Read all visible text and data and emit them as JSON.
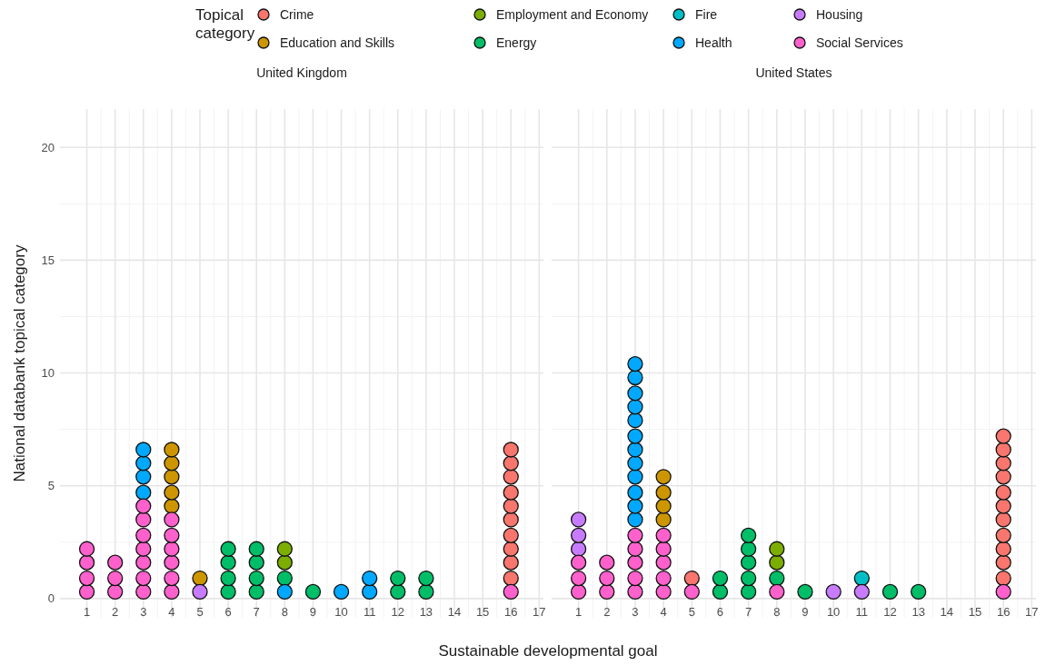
{
  "chart_data": [
    {
      "type": "scatter",
      "title": "United Kingdom",
      "xlabel": "Sustainable developmental goal",
      "ylabel": "National databank topical category",
      "grid": true,
      "marker": "circle",
      "xlim": [
        0.05,
        17.15
      ],
      "ylim": [
        -0.85,
        21.7
      ],
      "xticks": [
        1,
        2,
        3,
        4,
        5,
        6,
        7,
        8,
        9,
        10,
        11,
        12,
        13,
        14,
        15,
        16,
        17
      ],
      "yticks": [
        0,
        5,
        10,
        15,
        20
      ],
      "series": [
        {
          "color": "#f8766d",
          "x": [
            16,
            16,
            16,
            16,
            16,
            16,
            16,
            16,
            16,
            16
          ],
          "values": [
            0.9,
            1.6,
            2.2,
            2.8,
            3.5,
            4.1,
            4.7,
            5.4,
            6.0,
            6.6
          ]
        },
        {
          "color": "#cd9600",
          "x": [
            4,
            4,
            4,
            4,
            4,
            5
          ],
          "values": [
            4.1,
            4.7,
            5.4,
            6.0,
            6.6,
            0.9
          ]
        },
        {
          "color": "#7cae00",
          "x": [
            8,
            8
          ],
          "values": [
            1.6,
            2.2
          ]
        },
        {
          "color": "#00be67",
          "x": [
            6,
            6,
            6,
            6,
            7,
            7,
            7,
            7,
            8,
            9,
            12,
            12,
            13,
            13
          ],
          "values": [
            0.3,
            0.9,
            1.6,
            2.2,
            0.3,
            0.9,
            1.6,
            2.2,
            0.9,
            0.3,
            0.3,
            0.9,
            0.3,
            0.9
          ]
        },
        {
          "color": "#00a9ff",
          "x": [
            3,
            3,
            3,
            3,
            8,
            10,
            11,
            11
          ],
          "values": [
            4.7,
            5.4,
            6.0,
            6.6,
            0.3,
            0.3,
            0.3,
            0.9
          ]
        },
        {
          "color": "#c77cff",
          "x": [
            5
          ],
          "values": [
            0.3
          ]
        },
        {
          "color": "#ff61cc",
          "x": [
            1,
            1,
            1,
            1,
            2,
            2,
            2,
            3,
            3,
            3,
            3,
            3,
            3,
            3,
            4,
            4,
            4,
            4,
            4,
            4,
            16
          ],
          "values": [
            0.3,
            0.9,
            1.6,
            2.2,
            0.3,
            0.9,
            1.6,
            0.3,
            0.9,
            1.6,
            2.2,
            2.8,
            3.5,
            4.1,
            0.3,
            0.9,
            1.6,
            2.2,
            2.8,
            3.5,
            0.3
          ]
        }
      ]
    },
    {
      "type": "scatter",
      "title": "United States",
      "legend_title": "Topical category",
      "legend": "top",
      "grid": true,
      "marker": "circle",
      "tick_labels": "x",
      "xlim": [
        0.05,
        17.15
      ],
      "ylim": [
        -0.85,
        21.7
      ],
      "xticks": [
        1,
        2,
        3,
        4,
        5,
        6,
        7,
        8,
        9,
        10,
        11,
        12,
        13,
        14,
        15,
        16,
        17
      ],
      "yticks": [
        0,
        5,
        10,
        15,
        20
      ],
      "series": [
        {
          "name": "Crime",
          "color": "#f8766d",
          "x": [
            5,
            16,
            16,
            16,
            16,
            16,
            16,
            16,
            16,
            16,
            16,
            16
          ],
          "values": [
            0.9,
            0.9,
            1.6,
            2.2,
            2.8,
            3.5,
            4.1,
            4.7,
            5.4,
            6.0,
            6.6,
            7.2
          ]
        },
        {
          "name": "Education and Skills",
          "color": "#cd9600",
          "x": [
            4,
            4,
            4,
            4
          ],
          "values": [
            3.5,
            4.1,
            4.7,
            5.4
          ]
        },
        {
          "name": "Employment and Economy",
          "color": "#7cae00",
          "x": [
            8,
            8
          ],
          "values": [
            1.6,
            2.2
          ]
        },
        {
          "name": "Energy",
          "color": "#00be67",
          "x": [
            6,
            6,
            7,
            7,
            7,
            7,
            7,
            8,
            9,
            12,
            13
          ],
          "values": [
            0.3,
            0.9,
            0.3,
            0.9,
            1.6,
            2.2,
            2.8,
            0.9,
            0.3,
            0.3,
            0.3
          ]
        },
        {
          "name": "Fire",
          "color": "#00bfc4",
          "x": [
            11
          ],
          "values": [
            0.9
          ]
        },
        {
          "name": "Health",
          "color": "#00a9ff",
          "x": [
            3,
            3,
            3,
            3,
            3,
            3,
            3,
            3,
            3,
            3,
            3,
            3
          ],
          "values": [
            3.5,
            4.1,
            4.7,
            5.4,
            6.0,
            6.6,
            7.2,
            7.9,
            8.5,
            9.1,
            9.8,
            10.4
          ]
        },
        {
          "name": "Housing",
          "color": "#c77cff",
          "x": [
            1,
            1,
            1,
            10,
            11
          ],
          "values": [
            2.2,
            2.8,
            3.5,
            0.3,
            0.3
          ]
        },
        {
          "name": "Social Services",
          "color": "#ff61cc",
          "x": [
            1,
            1,
            1,
            2,
            2,
            2,
            3,
            3,
            3,
            3,
            3,
            4,
            4,
            4,
            4,
            4,
            5,
            8,
            16
          ],
          "values": [
            0.3,
            0.9,
            1.6,
            0.3,
            0.9,
            1.6,
            0.3,
            0.9,
            1.6,
            2.2,
            2.8,
            0.3,
            0.9,
            1.6,
            2.2,
            2.8,
            0.3,
            0.3,
            0.3
          ]
        }
      ]
    }
  ]
}
